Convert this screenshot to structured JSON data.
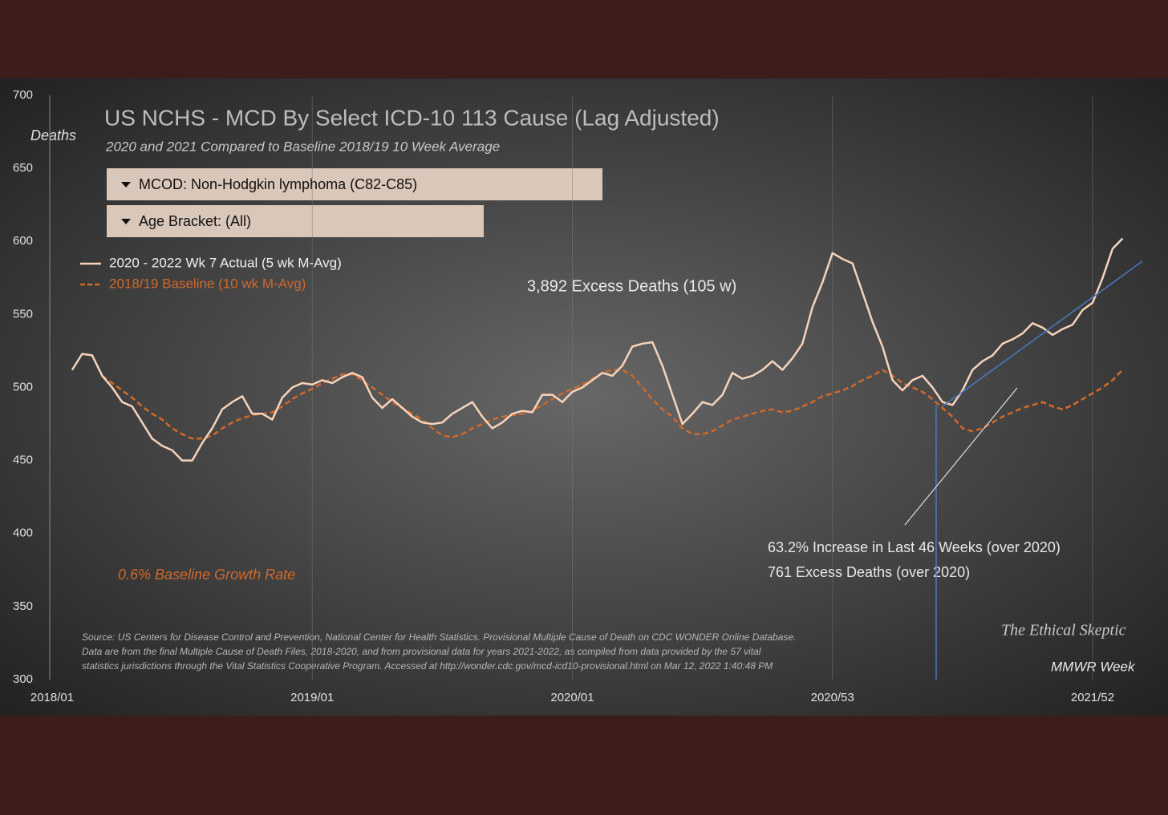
{
  "chart_data": {
    "type": "line",
    "title": "US NCHS - MCD By Select ICD-10 113 Cause (Lag Adjusted)",
    "subtitle": "2020  and 2021  Compared to Baseline 2018/19  10 Week Average",
    "y_axis_label": "Deaths",
    "x_axis_label": "MMWR Week",
    "filters": [
      "MCOD:  Non-Hodgkin lymphoma (C82-C85)",
      "Age Bracket:  (All)"
    ],
    "annotations": [
      "3,892 Excess  Deaths  (105 w)",
      "63.2%  Increase in Last 46 Weeks (over 2020)",
      "761  Excess Deaths (over 2020)",
      "0.6% Baseline Growth Rate"
    ],
    "source": [
      "Source: US Centers for Disease Control and Prevention, National Center for Health Statistics. Provisional Multiple Cause of Death on CDC WONDER Online Database.",
      "Data are from the final Multiple Cause of Death Files, 2018-2020, and from provisional data for years 2021-2022, as compiled from data provided by the 57 vital",
      "statistics jurisdictions through the Vital Statistics Cooperative Program. Accessed at http://wonder.cdc.gov/mcd-icd10-provisional.html on Mar 12, 2022 1:40:48 PM"
    ],
    "watermark": "The Ethical Skeptic",
    "categories": [
      "2018/01",
      null,
      null,
      null,
      null,
      null,
      null,
      null,
      null,
      null,
      null,
      null,
      null,
      null,
      null,
      null,
      null,
      null,
      null,
      null,
      null,
      null,
      null,
      null,
      null,
      null,
      "2019/01",
      null,
      null,
      null,
      null,
      null,
      null,
      null,
      null,
      null,
      null,
      null,
      null,
      null,
      null,
      null,
      null,
      null,
      null,
      null,
      null,
      null,
      null,
      null,
      null,
      null,
      "2020/01",
      null,
      null,
      null,
      null,
      null,
      null,
      null,
      null,
      null,
      null,
      null,
      null,
      null,
      null,
      null,
      null,
      null,
      null,
      null,
      null,
      null,
      null,
      null,
      null,
      null,
      "2020/53",
      null,
      null,
      null,
      null,
      null,
      null,
      null,
      null,
      null,
      null,
      null,
      null,
      null,
      null,
      null,
      null,
      null,
      null,
      null,
      null,
      null,
      null,
      null,
      null,
      null,
      "2021/52",
      null,
      null,
      null
    ],
    "series": [
      {
        "name": "2020 - 2022 Wk 7 Actual (5 wk M-Avg)",
        "color": "#f6d3bb",
        "dash": false,
        "values": [
          null,
          null,
          512,
          523,
          522,
          508,
          500,
          490,
          487,
          476,
          465,
          460,
          457,
          450,
          450,
          462,
          472,
          485,
          490,
          494,
          482,
          482,
          478,
          493,
          500,
          503,
          502,
          505,
          503,
          507,
          510,
          507,
          493,
          486,
          492,
          486,
          480,
          476,
          475,
          476,
          482,
          486,
          490,
          480,
          472,
          476,
          482,
          484,
          483,
          495,
          495,
          490,
          497,
          500,
          505,
          510,
          508,
          515,
          528,
          530,
          531,
          515,
          495,
          475,
          482,
          490,
          488,
          495,
          510,
          506,
          508,
          512,
          518,
          512,
          520,
          530,
          555,
          572,
          592,
          588,
          585,
          565,
          545,
          528,
          505,
          498,
          505,
          508,
          500,
          490,
          488,
          498,
          512,
          518,
          522,
          530,
          533,
          537,
          544,
          541,
          536,
          540,
          543,
          553,
          558,
          575,
          595,
          602
        ]
      },
      {
        "name": "2018/19  Baseline (10 wk M-Avg)",
        "color": "#d0692a",
        "dash": true,
        "values": [
          null,
          null,
          null,
          null,
          null,
          508,
          503,
          498,
          493,
          487,
          482,
          478,
          472,
          468,
          465,
          465,
          467,
          472,
          476,
          479,
          481,
          482,
          483,
          487,
          492,
          496,
          499,
          503,
          506,
          509,
          509,
          505,
          500,
          495,
          490,
          486,
          482,
          478,
          472,
          467,
          466,
          468,
          472,
          475,
          478,
          480,
          481,
          482,
          484,
          488,
          492,
          496,
          499,
          502,
          506,
          510,
          512,
          512,
          508,
          500,
          492,
          485,
          480,
          472,
          468,
          468,
          470,
          474,
          478,
          480,
          482,
          484,
          485,
          483,
          484,
          487,
          490,
          494,
          496,
          498,
          501,
          505,
          508,
          512,
          508,
          503,
          500,
          497,
          492,
          486,
          480,
          472,
          470,
          472,
          476,
          480,
          483,
          486,
          488,
          490,
          487,
          485,
          488,
          492,
          496,
          500,
          505,
          512
        ]
      }
    ],
    "ylim": [
      300,
      700
    ],
    "yticks": [
      300,
      350,
      400,
      450,
      500,
      550,
      600,
      650,
      700
    ],
    "grid": true
  }
}
